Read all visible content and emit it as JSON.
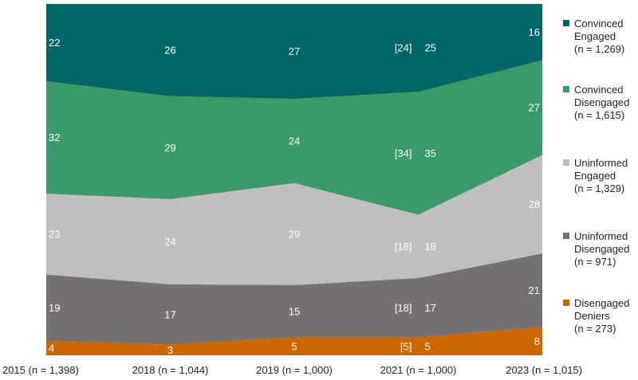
{
  "chart_data": {
    "type": "area",
    "stacked": true,
    "normalized_to": 100,
    "x": [
      "2015 (n = 1,398)",
      "2018 (n = 1,044)",
      "2019 (n = 1,000)",
      "2021 (n = 1,000)",
      "2023 (n = 1,015)"
    ],
    "ylim": [
      0,
      100
    ],
    "grid": false,
    "legend_placement": "right",
    "series": [
      {
        "name": "Disengaged Deniers",
        "legend_lines": [
          "Disengaged",
          "Deniers",
          "(n = 273)"
        ],
        "color": "#cc6600",
        "values": [
          4,
          3,
          5,
          5,
          8
        ],
        "labels": [
          "4",
          "3",
          "5",
          "5",
          "8"
        ],
        "bracketed": {
          "index": 3,
          "label": "[5]",
          "value": 5
        }
      },
      {
        "name": "Uninformed Disengaged",
        "legend_lines": [
          "Uninformed",
          "Disengaged",
          "(n = 971)"
        ],
        "color": "#767171",
        "values": [
          19,
          17,
          15,
          17,
          21
        ],
        "labels": [
          "19",
          "17",
          "15",
          "17",
          "21"
        ],
        "bracketed": {
          "index": 3,
          "label": "[18]",
          "value": 18
        }
      },
      {
        "name": "Uninformed Engaged",
        "legend_lines": [
          "Uninformed",
          "Engaged",
          "(n = 1,329)"
        ],
        "color": "#bfbfbf",
        "values": [
          23,
          24,
          29,
          18,
          28
        ],
        "labels": [
          "23",
          "24",
          "29",
          "18",
          "28"
        ],
        "bracketed": {
          "index": 3,
          "label": "[18]",
          "value": 18
        }
      },
      {
        "name": "Convinced Disengaged",
        "legend_lines": [
          "Convinced",
          "Disengaged",
          "(n = 1,615)"
        ],
        "color": "#3a9b68",
        "values": [
          32,
          29,
          24,
          35,
          27
        ],
        "labels": [
          "32",
          "29",
          "24",
          "35",
          "27"
        ],
        "bracketed": {
          "index": 3,
          "label": "[34]",
          "value": 34
        }
      },
      {
        "name": "Convinced Engaged",
        "legend_lines": [
          "Convinced",
          "Engaged",
          "(n = 1,269)"
        ],
        "color": "#006666",
        "values": [
          22,
          26,
          27,
          25,
          16
        ],
        "labels": [
          "22",
          "26",
          "27",
          "25",
          "16"
        ],
        "bracketed": {
          "index": 3,
          "label": "[24]",
          "value": 24
        }
      }
    ]
  }
}
